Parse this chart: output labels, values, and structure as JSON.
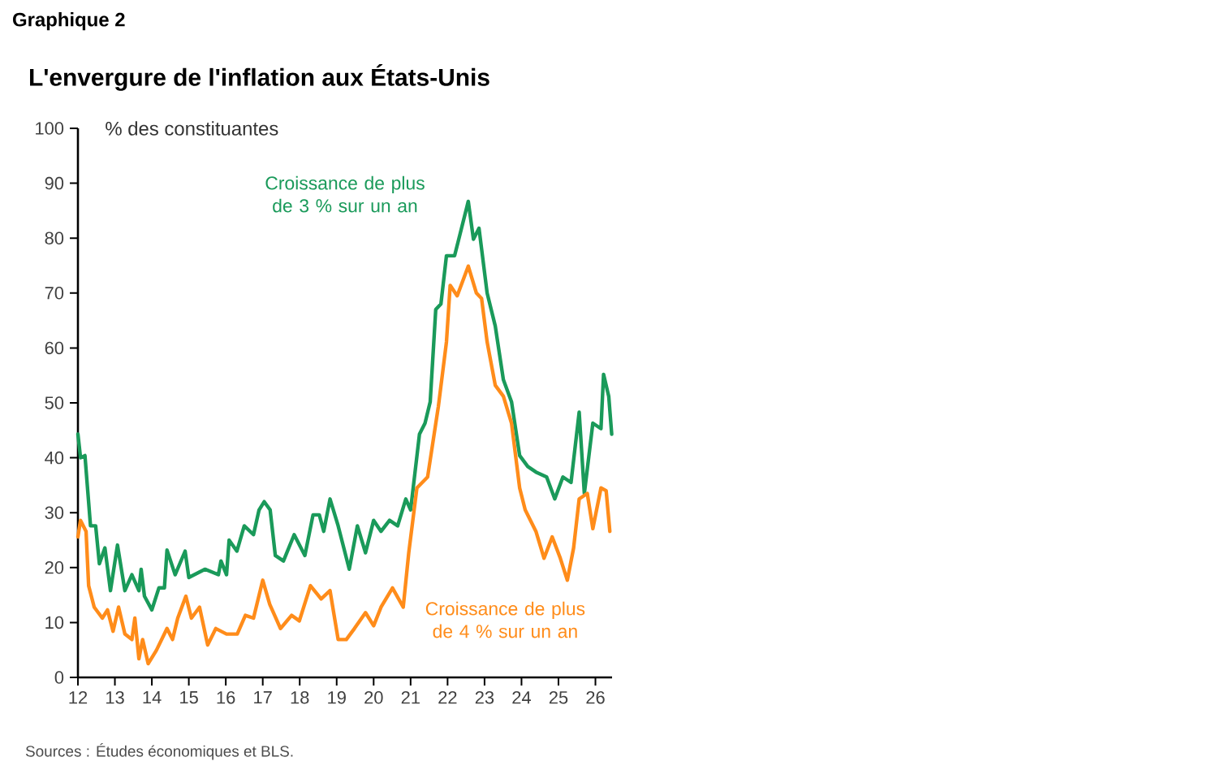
{
  "chart_data": {
    "type": "line",
    "title": "L'envergure de l'inflation aux États-Unis",
    "ylabel": "% des constituantes",
    "annotations": [
      "Graphique 2",
      "Sources : Études économiques et BLS."
    ],
    "xlim": [
      12,
      26.45
    ],
    "xticks": [
      12,
      13,
      14,
      15,
      16,
      17,
      18,
      19,
      20,
      21,
      22,
      23,
      24,
      25,
      26
    ],
    "ylim": [
      0,
      100
    ],
    "yticks": [
      0,
      10,
      20,
      30,
      40,
      50,
      60,
      70,
      80,
      90,
      100
    ],
    "grid": false,
    "legend": false,
    "line_style": "solid",
    "marker": "none",
    "series": [
      {
        "name": "Croissance de plus de 3 % sur un an",
        "color": "#1a9a5a",
        "x": [
          12.0,
          12.07,
          12.19,
          12.34,
          12.48,
          12.58,
          12.73,
          12.88,
          13.07,
          13.27,
          13.46,
          13.65,
          13.71,
          13.8,
          14.0,
          14.19,
          14.34,
          14.41,
          14.63,
          14.9,
          15.0,
          15.44,
          15.8,
          15.87,
          16.02,
          16.09,
          16.3,
          16.5,
          16.75,
          16.9,
          17.04,
          17.2,
          17.34,
          17.56,
          17.85,
          18.14,
          18.36,
          18.53,
          18.65,
          18.82,
          19.04,
          19.34,
          19.56,
          19.78,
          20.0,
          20.2,
          20.43,
          20.65,
          20.87,
          21.0,
          21.24,
          21.39,
          21.53,
          21.68,
          21.82,
          21.97,
          22.19,
          22.34,
          22.56,
          22.7,
          22.85,
          23.07,
          23.29,
          23.51,
          23.73,
          23.95,
          24.17,
          24.39,
          24.68,
          24.9,
          25.12,
          25.34,
          25.56,
          25.7,
          25.93,
          26.15,
          26.22,
          26.36,
          26.44
        ],
        "values": [
          44.3,
          40,
          40.4,
          27.6,
          27.6,
          20.7,
          23.6,
          15.8,
          24.1,
          15.8,
          18.7,
          15.8,
          19.7,
          14.8,
          12.3,
          16.3,
          16.3,
          23.2,
          18.7,
          23,
          18.2,
          19.7,
          18.7,
          21.2,
          18.7,
          25,
          23,
          27.6,
          26,
          30.5,
          32,
          30.5,
          22.2,
          21.2,
          26,
          22.2,
          29.6,
          29.6,
          26.6,
          32.5,
          27.6,
          19.7,
          27.6,
          22.7,
          28.6,
          26.6,
          28.6,
          27.6,
          32.5,
          30.5,
          44.3,
          46.3,
          50.2,
          67,
          68,
          76.8,
          76.8,
          80.8,
          86.7,
          79.8,
          81.8,
          70,
          64,
          54.2,
          50.2,
          40.4,
          38.4,
          37.4,
          36.5,
          32.5,
          36.5,
          35.5,
          48.3,
          33.5,
          46.3,
          45.3,
          55.2,
          51.2,
          44.3
        ]
      },
      {
        "name": "Croissance de plus de 4 % sur un an",
        "color": "#ff8c1a",
        "x": [
          12.0,
          12.07,
          12.22,
          12.29,
          12.44,
          12.66,
          12.8,
          12.95,
          13.1,
          13.27,
          13.46,
          13.54,
          13.65,
          13.75,
          13.9,
          14.12,
          14.41,
          14.56,
          14.7,
          14.92,
          15.07,
          15.29,
          15.51,
          15.73,
          16.02,
          16.31,
          16.53,
          16.75,
          17.0,
          17.19,
          17.48,
          17.78,
          17.99,
          18.29,
          18.58,
          18.82,
          19.04,
          19.26,
          19.48,
          19.78,
          20.0,
          20.2,
          20.51,
          20.8,
          20.95,
          21.17,
          21.46,
          21.75,
          21.97,
          22.07,
          22.26,
          22.56,
          22.78,
          22.92,
          23.07,
          23.29,
          23.51,
          23.73,
          23.95,
          24.1,
          24.39,
          24.61,
          24.83,
          25.05,
          25.24,
          25.41,
          25.56,
          25.78,
          25.93,
          26.15,
          26.29,
          26.39
        ],
        "values": [
          25.6,
          28.6,
          26.6,
          16.7,
          12.8,
          10.8,
          12.3,
          8.4,
          12.8,
          7.9,
          6.9,
          10.8,
          3.4,
          6.9,
          2.5,
          4.9,
          8.9,
          6.9,
          10.8,
          14.8,
          10.8,
          12.8,
          5.9,
          8.9,
          7.9,
          7.9,
          11.3,
          10.8,
          17.7,
          13.3,
          8.9,
          11.3,
          10.3,
          16.7,
          14.3,
          15.8,
          6.9,
          6.9,
          8.9,
          11.8,
          9.4,
          12.8,
          16.3,
          12.8,
          22.7,
          34.5,
          36.5,
          49.3,
          61.1,
          71.4,
          69.5,
          74.9,
          70,
          69,
          61.1,
          53.2,
          51.2,
          46.3,
          34.5,
          30.5,
          26.6,
          21.7,
          25.6,
          21.7,
          17.7,
          23.6,
          32.5,
          33.5,
          27.1,
          34.5,
          34,
          26.6
        ]
      }
    ]
  }
}
